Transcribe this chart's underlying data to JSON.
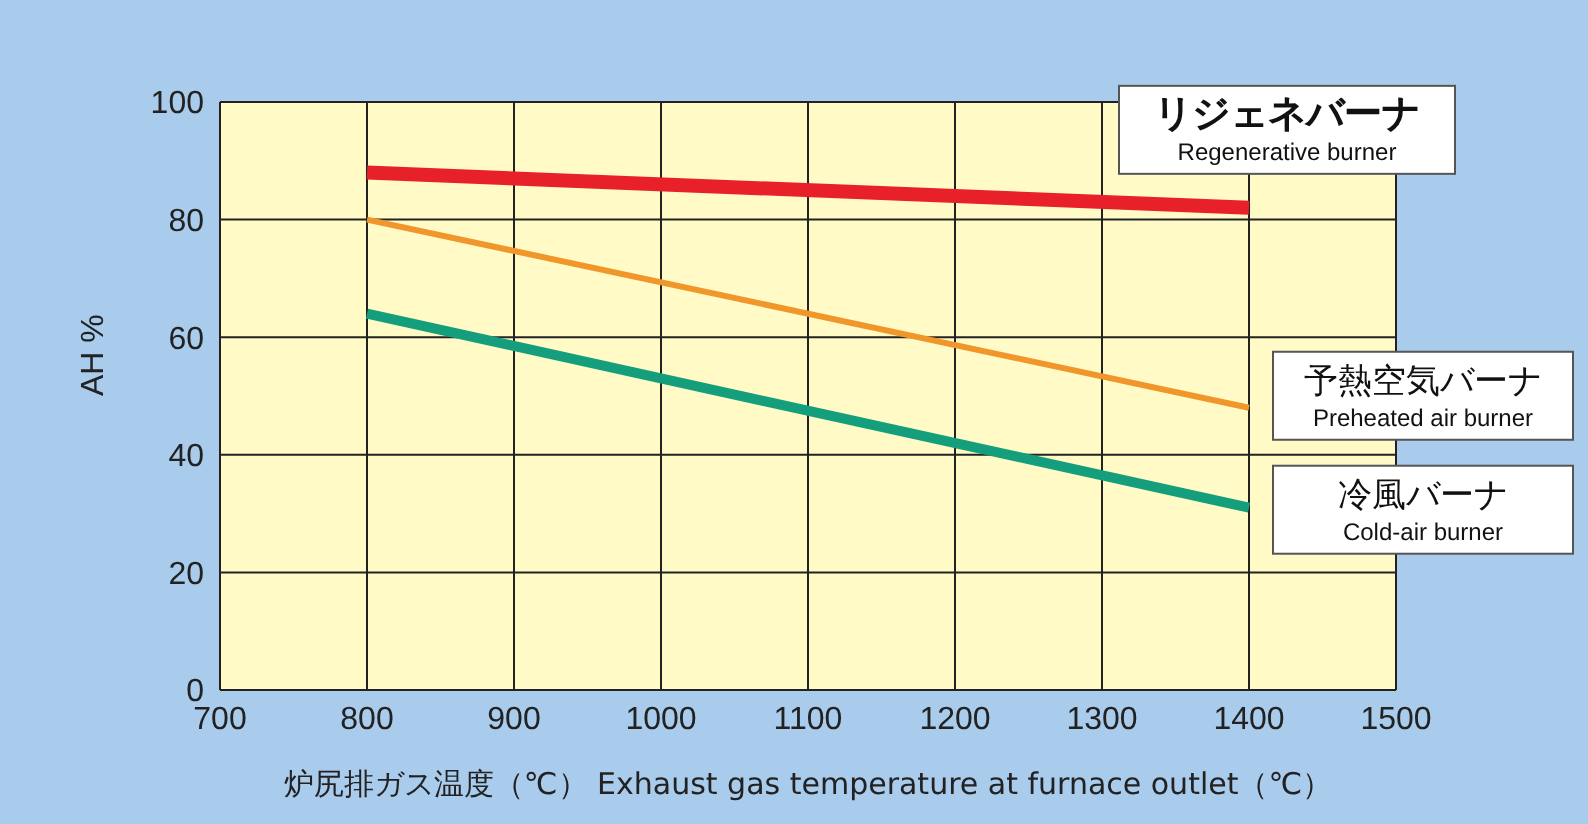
{
  "chart_data": {
    "type": "line",
    "xlabel": "炉尻排ガス温度（℃）  Exhaust gas temperature at furnace outlet（℃）",
    "ylabel": "AH %",
    "x": [
      800,
      1400
    ],
    "series": [
      {
        "name": "リジェネバーナ\nRegenerative burner",
        "color": "#e8202a",
        "values": [
          88,
          82
        ]
      },
      {
        "name": "予熱空気バーナ\nPreheated air burner",
        "color": "#f0962a",
        "values": [
          80,
          48
        ]
      },
      {
        "name": "冷風バーナ\nCold-air burner",
        "color": "#159e7c",
        "values": [
          64,
          31
        ]
      }
    ],
    "xlim": [
      700,
      1500
    ],
    "xticks": [
      700,
      800,
      900,
      1000,
      1100,
      1200,
      1300,
      1400,
      1500
    ],
    "ylim": [
      0,
      100
    ],
    "yticks": [
      0,
      20,
      40,
      60,
      80,
      100
    ],
    "grid": true,
    "legend": false,
    "marker": "none",
    "line_style": "solid"
  }
}
